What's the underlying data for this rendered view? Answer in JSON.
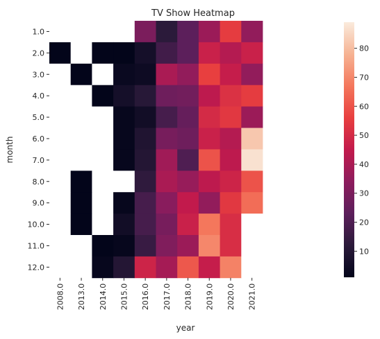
{
  "chart_data": {
    "type": "heatmap",
    "title": "TV Show Heatmap",
    "xlabel": "year",
    "ylabel": "month",
    "x_categories": [
      "2008.0",
      "2013.0",
      "2014.0",
      "2015.0",
      "2016.0",
      "2017.0",
      "2018.0",
      "2019.0",
      "2020.0",
      "2021.0"
    ],
    "y_categories": [
      "1.0",
      "2.0",
      "3.0",
      "4.0",
      "5.0",
      "6.0",
      "7.0",
      "8.0",
      "9.0",
      "10.0",
      "11.0",
      "12.0"
    ],
    "values": [
      [
        null,
        null,
        null,
        null,
        30,
        12,
        23,
        37,
        55,
        35
      ],
      [
        1,
        null,
        1,
        1,
        6,
        17,
        23,
        47,
        42,
        47
      ],
      [
        null,
        1,
        null,
        3,
        4,
        40,
        35,
        56,
        46,
        35
      ],
      [
        null,
        null,
        1,
        6,
        11,
        27,
        28,
        44,
        52,
        55
      ],
      [
        null,
        null,
        null,
        2,
        5,
        18,
        25,
        50,
        54,
        37
      ],
      [
        null,
        null,
        null,
        2,
        9,
        29,
        27,
        47,
        42,
        82
      ],
      [
        null,
        null,
        null,
        2,
        10,
        38,
        20,
        60,
        44,
        87
      ],
      [
        null,
        1,
        null,
        null,
        13,
        40,
        36,
        44,
        48,
        60
      ],
      [
        null,
        1,
        null,
        2,
        18,
        33,
        45,
        35,
        54,
        65
      ],
      [
        null,
        1,
        null,
        5,
        18,
        29,
        47,
        67,
        51,
        null
      ],
      [
        null,
        null,
        1,
        2,
        15,
        31,
        37,
        70,
        51,
        null
      ],
      [
        null,
        null,
        2,
        10,
        48,
        39,
        61,
        46,
        69,
        null
      ]
    ],
    "colorbar": {
      "min": 1,
      "max": 89,
      "ticks": [
        10,
        20,
        30,
        40,
        50,
        60,
        70,
        80
      ],
      "colormap": "rocket",
      "colormap_stops": [
        "#03051a",
        "#2b1a3a",
        "#5c1f5b",
        "#8d1c5d",
        "#c21a4c",
        "#e83f3f",
        "#f4775c",
        "#f6b393",
        "#faebdd"
      ]
    },
    "missing_color": "#ffffff",
    "grid": false
  }
}
